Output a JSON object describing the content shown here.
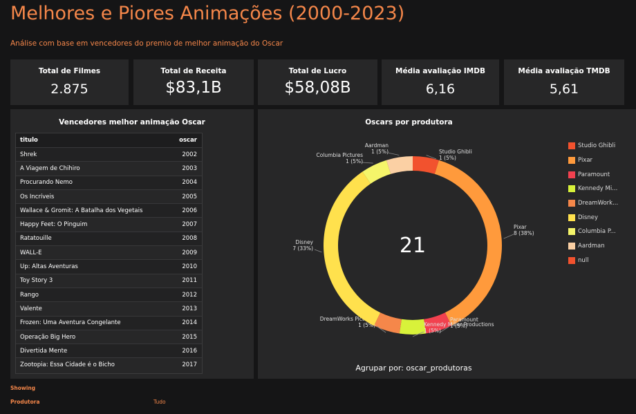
{
  "header": {
    "title": "Melhores e Piores Animações (2000-2023)",
    "subtitle": "Análise com base em vencedores do premio de melhor animação do Oscar"
  },
  "kpis": [
    {
      "label": "Total de Filmes",
      "value": "2.875"
    },
    {
      "label": "Total de Receita",
      "value": "$83,1B"
    },
    {
      "label": "Total de Lucro",
      "value": "$58,08B"
    },
    {
      "label": "Média avaliação IMDB",
      "value": "6,16"
    },
    {
      "label": "Média avaliação TMDB",
      "value": "5,61"
    }
  ],
  "winners_table": {
    "title": "Vencedores melhor animação Oscar",
    "columns": [
      "titulo",
      "oscar"
    ],
    "rows": [
      [
        "Shrek",
        "2002"
      ],
      [
        "A Viagem de Chihiro",
        "2003"
      ],
      [
        "Procurando Nemo",
        "2004"
      ],
      [
        "Os Incríveis",
        "2005"
      ],
      [
        "Wallace & Gromit: A Batalha dos Vegetais",
        "2006"
      ],
      [
        "Happy Feet: O Pinguim",
        "2007"
      ],
      [
        "Ratatouille",
        "2008"
      ],
      [
        "WALL-E",
        "2009"
      ],
      [
        "Up: Altas Aventuras",
        "2010"
      ],
      [
        "Toy Story 3",
        "2011"
      ],
      [
        "Rango",
        "2012"
      ],
      [
        "Valente",
        "2013"
      ],
      [
        "Frozen: Uma Aventura Congelante",
        "2014"
      ],
      [
        "Operação Big Hero",
        "2015"
      ],
      [
        "Divertida Mente",
        "2016"
      ],
      [
        "Zootopia: Essa Cidade é o Bicho",
        "2017"
      ]
    ]
  },
  "chart_data": {
    "type": "pie",
    "title": "Oscars por produtora",
    "center_total": "21",
    "group_by": "Agrupar por: oscar_produtoras",
    "slices": [
      {
        "name": "Studio Ghibli",
        "value": 1,
        "label": "1 (5%)",
        "color": "#f2522e"
      },
      {
        "name": "Pixar",
        "value": 8,
        "label": "8 (38%)",
        "color": "#ff9a3c"
      },
      {
        "name": "Paramount",
        "value": 1,
        "label": "1 (5%)",
        "color": "#f2414f"
      },
      {
        "name": "Kennedy Miller Productions",
        "value": 1,
        "label": "1 (5%)",
        "color": "#d8f23a"
      },
      {
        "name": "DreamWorks Pictures",
        "value": 1,
        "label": "1 (5%)",
        "color": "#f5874a"
      },
      {
        "name": "Disney",
        "value": 7,
        "label": "7 (33%)",
        "color": "#ffe14d"
      },
      {
        "name": "Columbia Pictures",
        "value": 1,
        "label": "1 (5%)",
        "color": "#f5f56a"
      },
      {
        "name": "Aardman",
        "value": 1,
        "label": "1 (5%)",
        "color": "#fbd0a4"
      }
    ],
    "legend": [
      {
        "name": "Studio Ghibli",
        "color": "#f2522e"
      },
      {
        "name": "Pixar",
        "color": "#ff9a3c"
      },
      {
        "name": "Paramount",
        "color": "#f2414f"
      },
      {
        "name": "Kennedy Mi...",
        "color": "#d8f23a"
      },
      {
        "name": "DreamWork...",
        "color": "#f5874a"
      },
      {
        "name": "Disney",
        "color": "#ffe14d"
      },
      {
        "name": "Columbia P...",
        "color": "#f5f56a"
      },
      {
        "name": "Aardman",
        "color": "#fbd0a4"
      },
      {
        "name": "null",
        "color": "#f2522e"
      }
    ]
  },
  "footer": {
    "showing": "Showing",
    "filter_label": "Produtora",
    "filter_value": "Tudo"
  }
}
